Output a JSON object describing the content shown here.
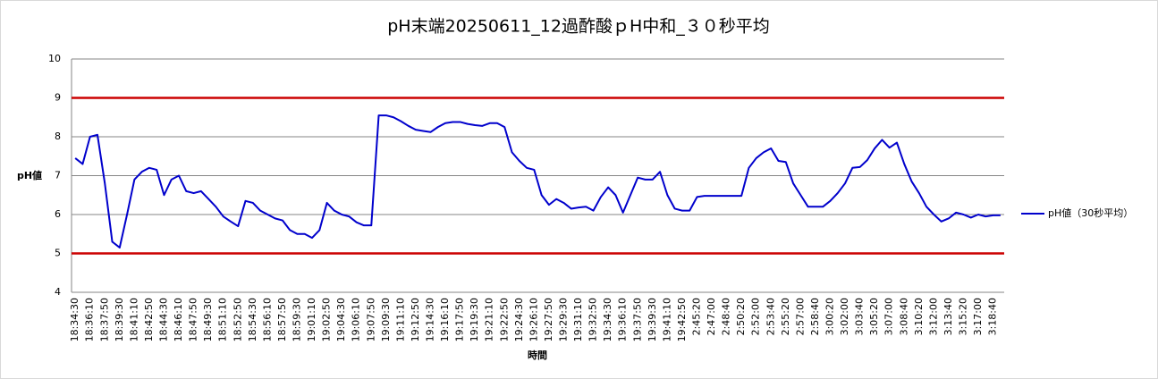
{
  "chart_data": {
    "type": "line",
    "title": "pH末端20250611_12過酢酸ｐH中和_３０秒平均",
    "y_label": "pH値",
    "x_label": "時間",
    "categories": [
      "18:34:30",
      null,
      "18:36:10",
      null,
      "18:37:50",
      null,
      "18:39:30",
      null,
      "18:41:10",
      null,
      "18:42:50",
      null,
      "18:44:30",
      null,
      "18:46:10",
      null,
      "18:47:50",
      null,
      "18:49:30",
      null,
      "18:51:10",
      null,
      "18:52:50",
      null,
      "18:54:30",
      null,
      "18:56:10",
      null,
      "18:57:50",
      null,
      "18:59:30",
      null,
      "19:01:10",
      null,
      "19:02:50",
      null,
      "19:04:30",
      null,
      "19:06:10",
      null,
      "19:07:50",
      null,
      "19:09:30",
      null,
      "19:11:10",
      null,
      "19:12:50",
      null,
      "19:14:30",
      null,
      "19:16:10",
      null,
      "19:17:50",
      null,
      "19:19:30",
      null,
      "19:21:10",
      null,
      "19:22:50",
      null,
      "19:24:30",
      null,
      "19:26:10",
      null,
      "19:27:50",
      null,
      "19:29:30",
      null,
      "19:31:10",
      null,
      "19:32:50",
      null,
      "19:34:30",
      null,
      "19:36:10",
      null,
      "19:37:50",
      null,
      "19:39:30",
      null,
      "19:41:10",
      null,
      "19:42:50",
      null,
      "2:45:20",
      null,
      "2:47:00",
      null,
      "2:48:40",
      null,
      "2:50:20",
      null,
      "2:52:00",
      null,
      "2:53:40",
      null,
      "2:55:20",
      null,
      "2:57:00",
      null,
      "2:58:40",
      null,
      "3:00:20",
      null,
      "3:02:00",
      null,
      "3:03:40",
      null,
      "3:05:20",
      null,
      "3:07:00",
      null,
      "3:08:40",
      null,
      "3:10:20",
      null,
      "3:12:00",
      null,
      "3:13:40",
      null,
      "3:15:20",
      null,
      "3:17:00",
      null,
      "3:18:40",
      null
    ],
    "series": [
      {
        "name": "pH値（30秒平均）",
        "color": "#0000cc",
        "values": [
          7.45,
          7.3,
          8.0,
          8.05,
          6.8,
          5.3,
          5.15,
          6.0,
          6.9,
          7.1,
          7.2,
          7.15,
          6.5,
          6.9,
          7.0,
          6.6,
          6.55,
          6.6,
          6.4,
          6.2,
          5.95,
          5.82,
          5.7,
          6.35,
          6.3,
          6.1,
          6.0,
          5.9,
          5.85,
          5.6,
          5.5,
          5.5,
          5.4,
          5.6,
          6.3,
          6.1,
          6.0,
          5.95,
          5.8,
          5.72,
          5.72,
          8.55,
          8.55,
          8.5,
          8.4,
          8.28,
          8.18,
          8.15,
          8.12,
          8.25,
          8.35,
          8.38,
          8.38,
          8.33,
          8.3,
          8.28,
          8.35,
          8.35,
          8.25,
          7.6,
          7.38,
          7.2,
          7.15,
          6.5,
          6.25,
          6.4,
          6.3,
          6.15,
          6.18,
          6.2,
          6.1,
          6.45,
          6.7,
          6.5,
          6.05,
          6.5,
          6.95,
          6.9,
          6.9,
          7.1,
          6.5,
          6.15,
          6.1,
          6.1,
          6.45,
          6.48,
          6.48,
          6.48,
          6.48,
          6.48,
          6.48,
          7.2,
          7.45,
          7.6,
          7.7,
          7.38,
          7.35,
          6.8,
          6.5,
          6.2,
          6.2,
          6.2,
          6.35,
          6.55,
          6.8,
          7.2,
          7.22,
          7.4,
          7.7,
          7.92,
          7.72,
          7.85,
          7.3,
          6.85,
          6.55,
          6.2,
          6.0,
          5.82,
          5.9,
          6.05,
          6.0,
          5.92,
          6.0,
          5.95,
          5.98,
          5.98
        ]
      }
    ],
    "reference_lines": [
      {
        "value": 9,
        "color": "#cc0000"
      },
      {
        "value": 5,
        "color": "#cc0000"
      }
    ],
    "ylim": [
      4,
      10
    ],
    "yticks": [
      4,
      5,
      6,
      7,
      8,
      9,
      10
    ],
    "grid": true,
    "legend": "right"
  }
}
